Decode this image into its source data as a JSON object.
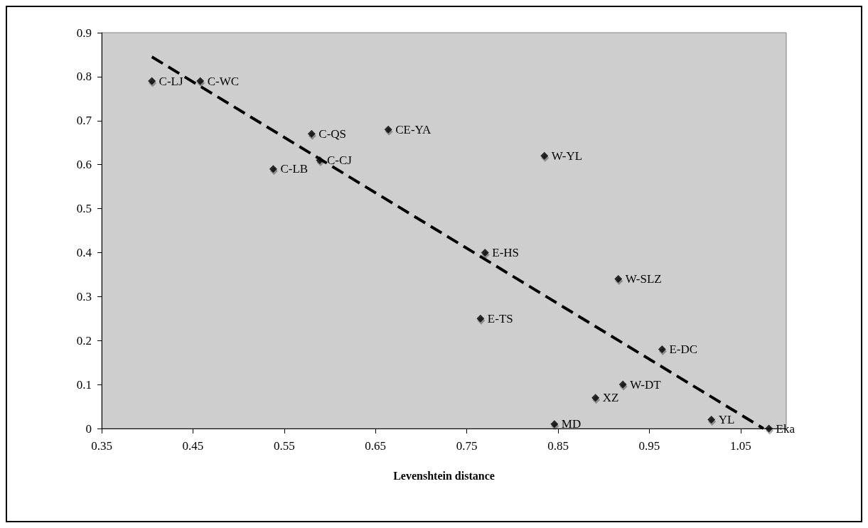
{
  "chart_data": {
    "type": "scatter",
    "xlabel": "Levenshtein distance",
    "xlim": [
      0.35,
      1.1
    ],
    "xticks": [
      0.35,
      0.45,
      0.55,
      0.65,
      0.75,
      0.85,
      0.95,
      1.05
    ],
    "ylim": [
      0,
      0.9
    ],
    "yticks": [
      0,
      0.1,
      0.2,
      0.3,
      0.4,
      0.5,
      0.6,
      0.7,
      0.8,
      0.9
    ],
    "grid": false,
    "legend": false,
    "marker": "diamond",
    "series": [
      {
        "color": "#000000",
        "x": [
          0.405,
          0.458,
          0.58,
          0.589,
          0.538,
          0.664,
          0.835,
          0.77,
          0.916,
          0.765,
          0.964,
          0.921,
          0.891,
          0.846,
          1.018,
          1.081
        ],
        "values": [
          0.79,
          0.79,
          0.67,
          0.61,
          0.59,
          0.68,
          0.62,
          0.4,
          0.34,
          0.25,
          0.18,
          0.1,
          0.07,
          0.01,
          0.02,
          0
        ]
      },
      {
        "type": "line",
        "color": "#000000",
        "line_style": "dashed",
        "marker": "none",
        "x": [
          0.405,
          1.075
        ],
        "values": [
          0.845,
          0
        ]
      }
    ],
    "annotations": [
      {
        "text": "C-LJ",
        "x": 0.405,
        "y": 0.79
      },
      {
        "text": "C-WC",
        "x": 0.458,
        "y": 0.79
      },
      {
        "text": "C-QS",
        "x": 0.58,
        "y": 0.67
      },
      {
        "text": "C-CJ",
        "x": 0.589,
        "y": 0.61
      },
      {
        "text": "C-LB",
        "x": 0.538,
        "y": 0.59
      },
      {
        "text": "CE-YA",
        "x": 0.664,
        "y": 0.68
      },
      {
        "text": "W-YL",
        "x": 0.835,
        "y": 0.62
      },
      {
        "text": "E-HS",
        "x": 0.77,
        "y": 0.4
      },
      {
        "text": "W-SLZ",
        "x": 0.916,
        "y": 0.34
      },
      {
        "text": "E-TS",
        "x": 0.765,
        "y": 0.25
      },
      {
        "text": "E-DC",
        "x": 0.964,
        "y": 0.18
      },
      {
        "text": "W-DT",
        "x": 0.921,
        "y": 0.1
      },
      {
        "text": "XZ",
        "x": 0.891,
        "y": 0.07
      },
      {
        "text": "MD",
        "x": 0.846,
        "y": 0.01
      },
      {
        "text": "YL",
        "x": 1.018,
        "y": 0.02
      },
      {
        "text": "Eka",
        "x": 1.081,
        "y": 0
      }
    ]
  }
}
